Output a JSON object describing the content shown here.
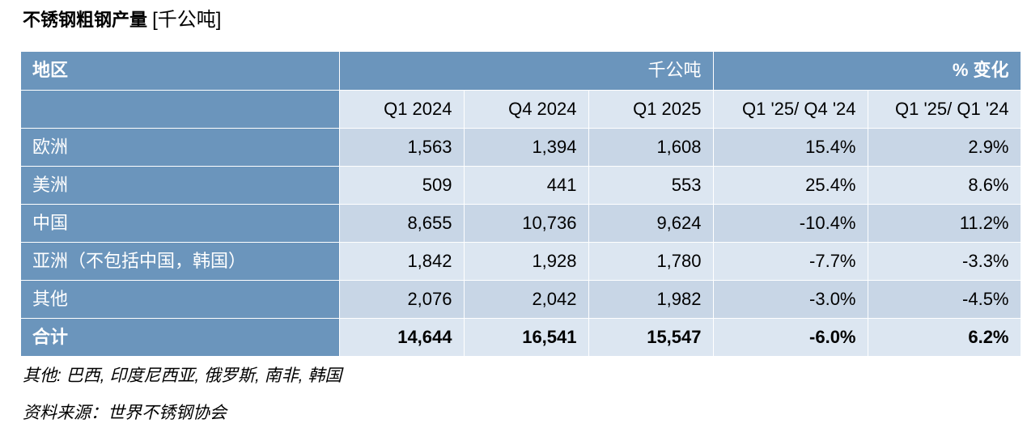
{
  "title": "不锈钢粗钢产量",
  "title_unit": "[千公吨]",
  "header": {
    "region": "地区",
    "unit": "千公吨",
    "change": "% 变化",
    "cols": [
      "Q1 2024",
      "Q4 2024",
      "Q1 2025",
      "Q1 '25/ Q4 '24",
      "Q1 '25/ Q1 '24"
    ]
  },
  "rows": [
    {
      "region": "欧洲",
      "q1_2024": "1,563",
      "q4_2024": "1,394",
      "q1_2025": "1,608",
      "chg_q4": "15.4%",
      "chg_q1": "2.9%"
    },
    {
      "region": "美洲",
      "q1_2024": "509",
      "q4_2024": "441",
      "q1_2025": "553",
      "chg_q4": "25.4%",
      "chg_q1": "8.6%"
    },
    {
      "region": "中国",
      "q1_2024": "8,655",
      "q4_2024": "10,736",
      "q1_2025": "9,624",
      "chg_q4": "-10.4%",
      "chg_q1": "11.2%"
    },
    {
      "region": "亚洲（不包括中国，韩国）",
      "q1_2024": "1,842",
      "q4_2024": "1,928",
      "q1_2025": "1,780",
      "chg_q4": "-7.7%",
      "chg_q1": "-3.3%"
    },
    {
      "region": "其他",
      "q1_2024": "2,076",
      "q4_2024": "2,042",
      "q1_2025": "1,982",
      "chg_q4": "-3.0%",
      "chg_q1": "-4.5%"
    }
  ],
  "total": {
    "region": "合计",
    "q1_2024": "14,644",
    "q4_2024": "16,541",
    "q1_2025": "15,547",
    "chg_q4": "-6.0%",
    "chg_q1": "6.2%"
  },
  "footnote_other": "其他: 巴西, 印度尼西亚, 俄罗斯, 南非, 韩国",
  "footnote_source": "资料来源：世界不锈钢协会",
  "colors": {
    "header_blue": "#6b95bc",
    "row_light": "#dce6f1",
    "row_mid": "#c8d6e6"
  }
}
